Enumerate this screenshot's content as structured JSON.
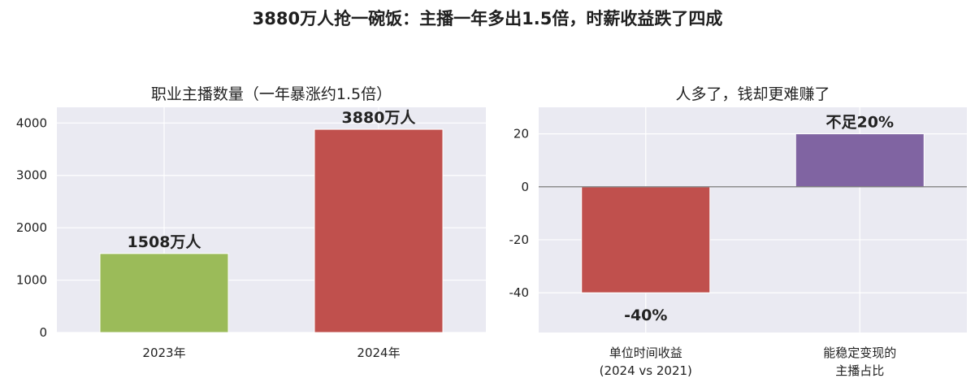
{
  "figure": {
    "title": "3880万人抢一碗饭：主播一年多出1.5倍，时薪收益跌了四成"
  },
  "chart_data": [
    {
      "type": "bar",
      "title": "职业主播数量（一年暴涨约1.5倍）",
      "categories": [
        "2023年",
        "2024年"
      ],
      "values": [
        1508,
        3880
      ],
      "data_labels": [
        "1508万人",
        "3880万人"
      ],
      "colors": [
        "#9bbb59",
        "#c0504d"
      ],
      "ylim": [
        0,
        4300
      ],
      "yticks": [
        0,
        1000,
        2000,
        3000,
        4000
      ],
      "grid": true,
      "background": "#eaeaf2"
    },
    {
      "type": "bar",
      "title": "人多了，钱却更难赚了",
      "categories": [
        [
          "单位时间收益",
          "(2024 vs 2021)"
        ],
        [
          "能稳定变现的",
          "主播占比"
        ]
      ],
      "values": [
        -40,
        20
      ],
      "data_labels": [
        "-40%",
        "不足20%"
      ],
      "colors": [
        "#c0504d",
        "#8064a2"
      ],
      "ylim": [
        -55,
        30
      ],
      "yticks": [
        -40,
        -20,
        0,
        20
      ],
      "grid": true,
      "zero_line": true,
      "background": "#eaeaf2"
    }
  ]
}
